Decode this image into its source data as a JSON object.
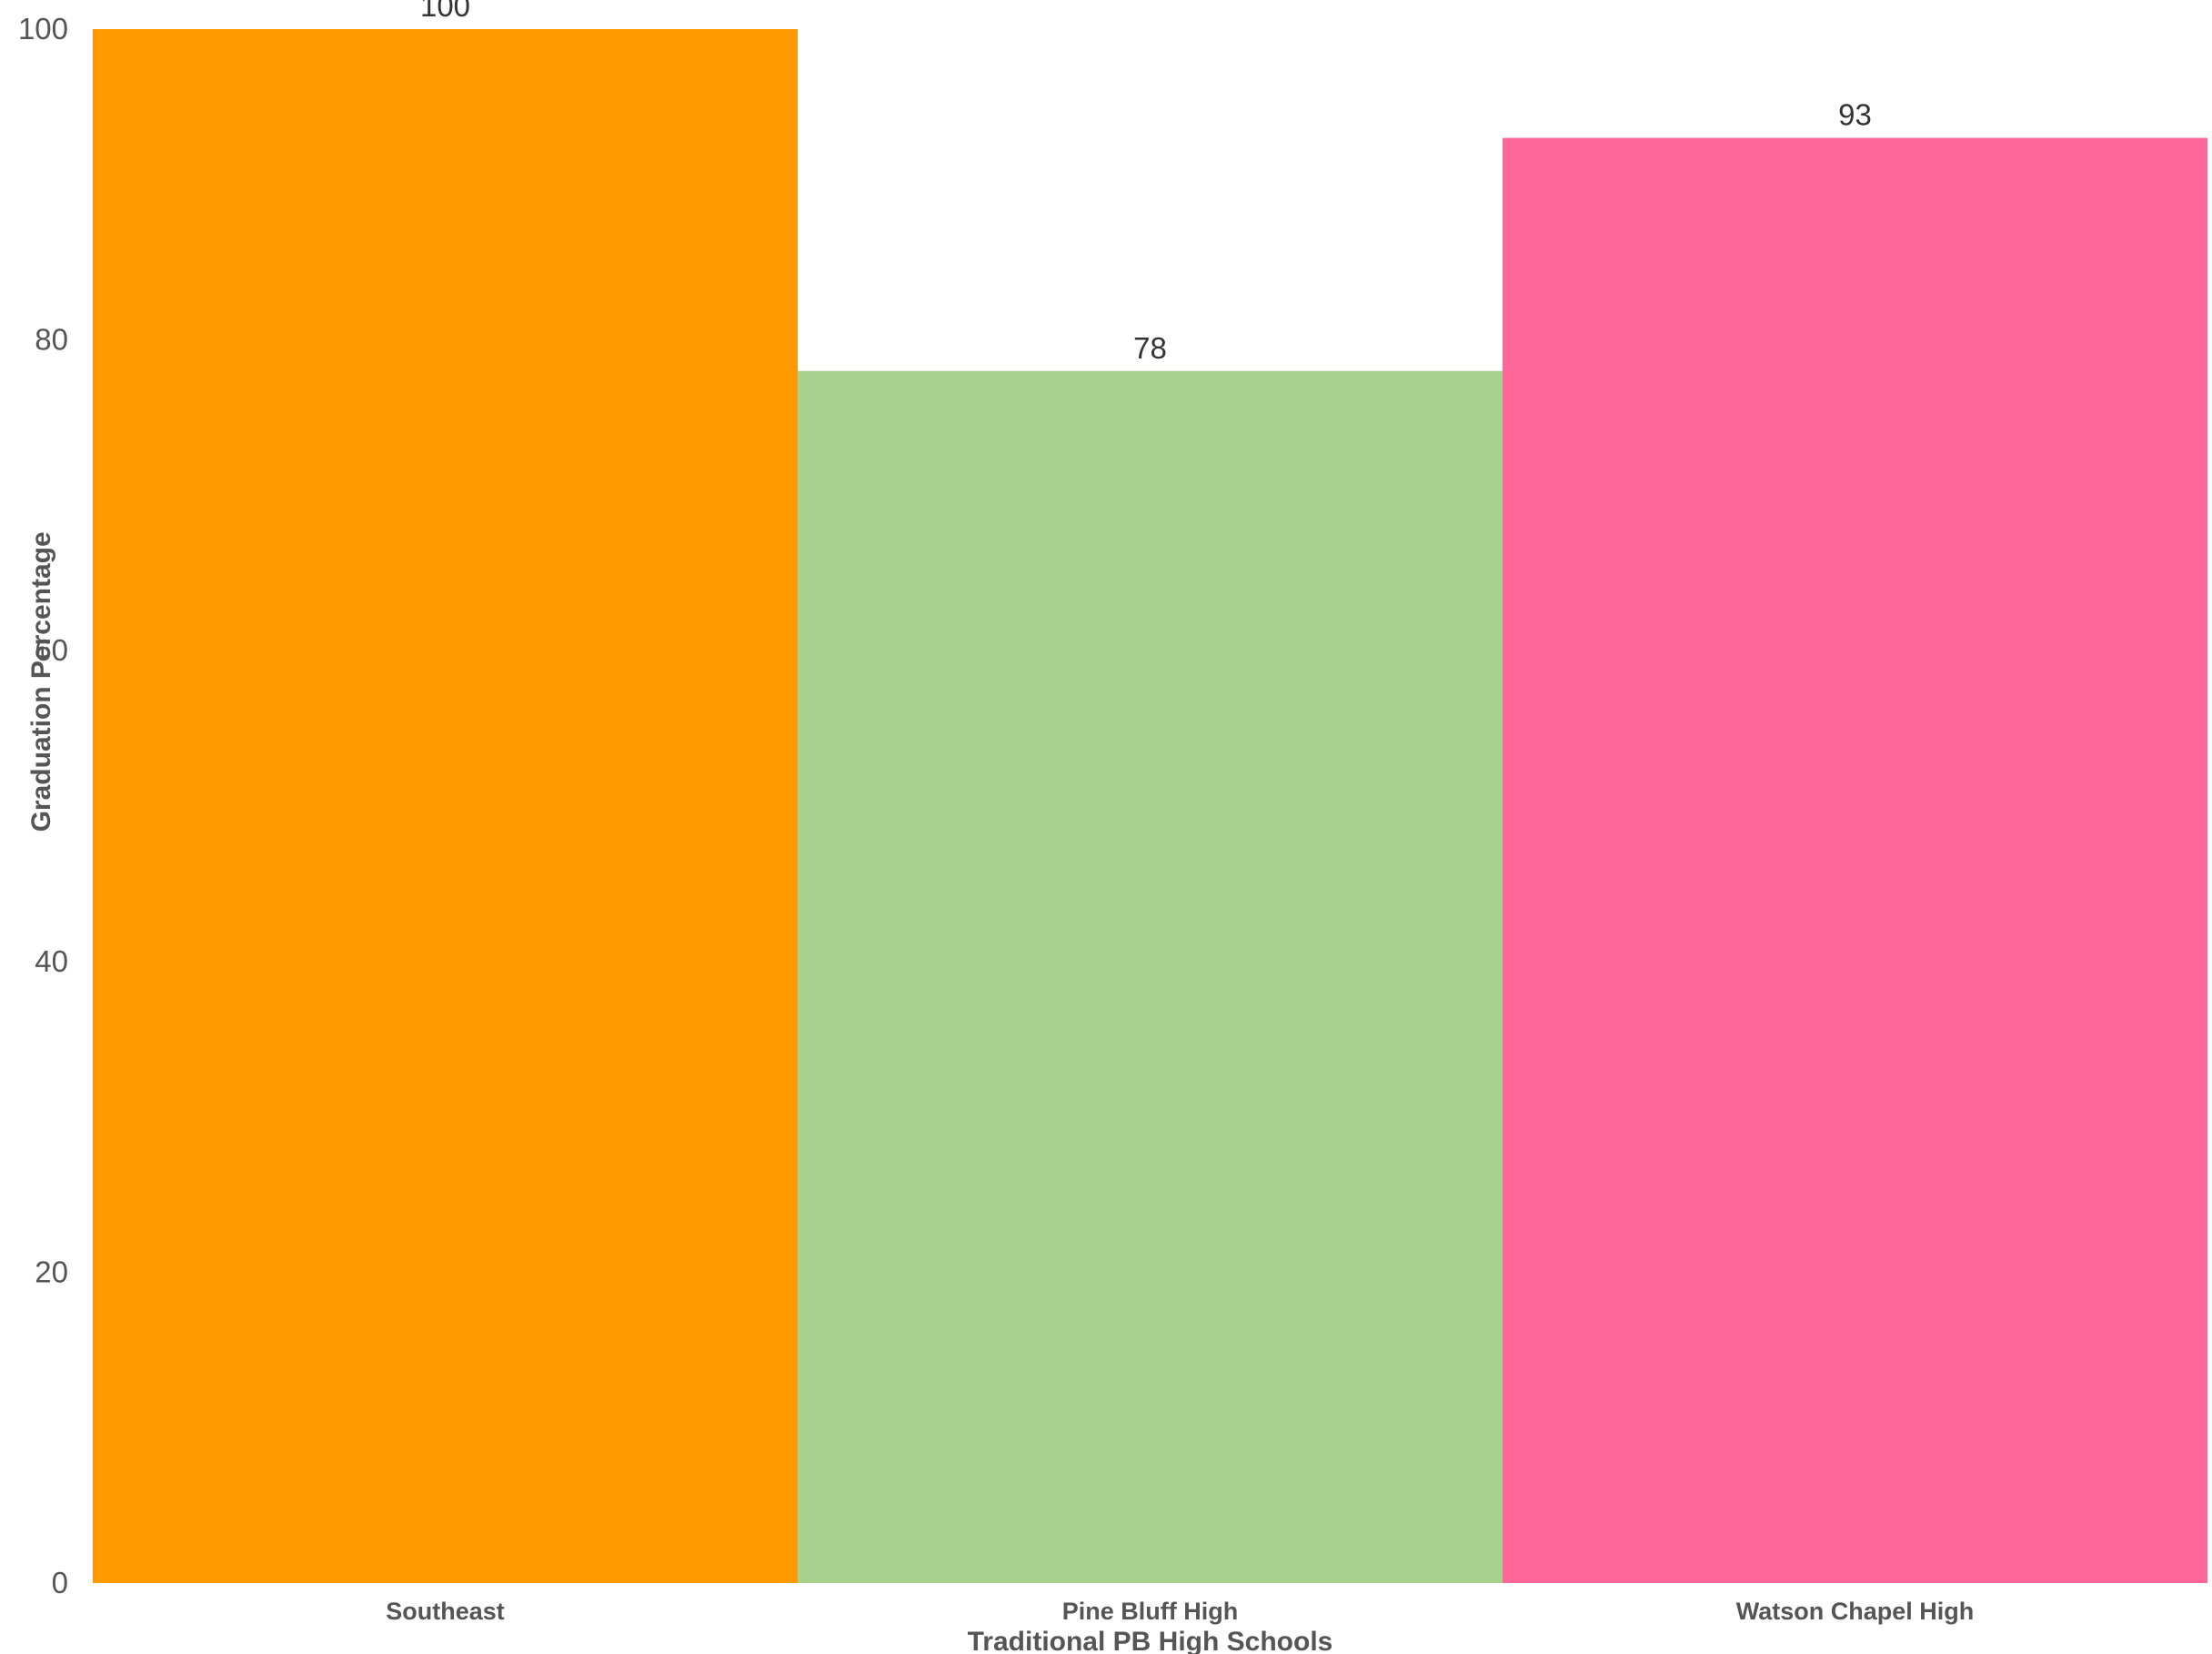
{
  "chart_data": {
    "type": "bar",
    "title": "",
    "xlabel": "Traditional PB High Schools",
    "ylabel": "Graduation Percentage",
    "categories": [
      "Southeast",
      "Pine Bluff High",
      "Watson Chapel High"
    ],
    "values": [
      100,
      78,
      93
    ],
    "data_labels": [
      "100",
      "78",
      "93"
    ],
    "colors": [
      "#FF9900",
      "#A9D18E",
      "#FF6699"
    ],
    "ylim": [
      0,
      100
    ],
    "yticks": [
      0,
      20,
      40,
      60,
      80,
      100
    ],
    "ytick_labels": [
      "0",
      "20",
      "40",
      "60",
      "80",
      "100"
    ],
    "grid": false,
    "legend": "none"
  }
}
